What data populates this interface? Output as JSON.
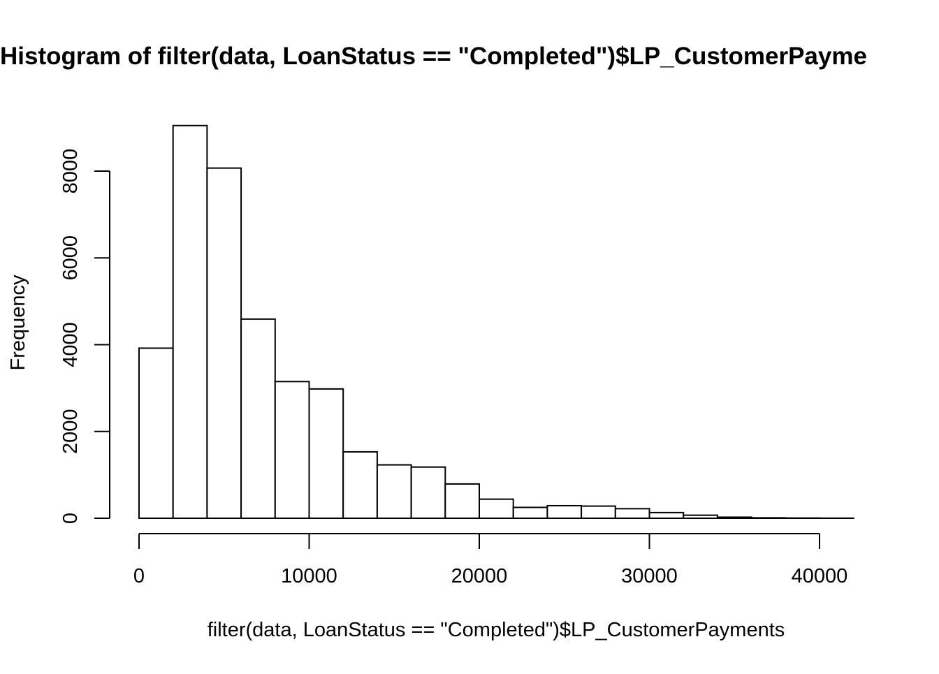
{
  "chart_data": {
    "type": "bar",
    "subtype": "histogram",
    "title": "Histogram of filter(data, LoanStatus == \"Completed\")$LP_CustomerPayme",
    "xlabel": "filter(data, LoanStatus == \"Completed\")$LP_CustomerPayments",
    "ylabel": "Frequency",
    "bins": [
      {
        "start": 0,
        "end": 2000,
        "value": 3920
      },
      {
        "start": 2000,
        "end": 4000,
        "value": 9050
      },
      {
        "start": 4000,
        "end": 6000,
        "value": 8070
      },
      {
        "start": 6000,
        "end": 8000,
        "value": 4590
      },
      {
        "start": 8000,
        "end": 10000,
        "value": 3150
      },
      {
        "start": 10000,
        "end": 12000,
        "value": 2980
      },
      {
        "start": 12000,
        "end": 14000,
        "value": 1530
      },
      {
        "start": 14000,
        "end": 16000,
        "value": 1230
      },
      {
        "start": 16000,
        "end": 18000,
        "value": 1180
      },
      {
        "start": 18000,
        "end": 20000,
        "value": 790
      },
      {
        "start": 20000,
        "end": 22000,
        "value": 440
      },
      {
        "start": 22000,
        "end": 24000,
        "value": 250
      },
      {
        "start": 24000,
        "end": 26000,
        "value": 290
      },
      {
        "start": 26000,
        "end": 28000,
        "value": 280
      },
      {
        "start": 28000,
        "end": 30000,
        "value": 220
      },
      {
        "start": 30000,
        "end": 32000,
        "value": 130
      },
      {
        "start": 32000,
        "end": 34000,
        "value": 70
      },
      {
        "start": 34000,
        "end": 36000,
        "value": 25
      },
      {
        "start": 36000,
        "end": 38000,
        "value": 10
      },
      {
        "start": 38000,
        "end": 40000,
        "value": 5
      },
      {
        "start": 40000,
        "end": 42000,
        "value": 2
      }
    ],
    "xticks": [
      {
        "value": 0,
        "label": "0"
      },
      {
        "value": 10000,
        "label": "10000"
      },
      {
        "value": 20000,
        "label": "20000"
      },
      {
        "value": 30000,
        "label": "30000"
      },
      {
        "value": 40000,
        "label": "40000"
      }
    ],
    "yticks": [
      {
        "value": 0,
        "label": "0"
      },
      {
        "value": 2000,
        "label": "2000"
      },
      {
        "value": 4000,
        "label": "4000"
      },
      {
        "value": 6000,
        "label": "6000"
      },
      {
        "value": 8000,
        "label": "8000"
      }
    ],
    "xlim": [
      0,
      42000
    ],
    "ylim": [
      0,
      9050
    ],
    "grid": false,
    "colors": {
      "bar_fill": "#ffffff",
      "bar_stroke": "#000000",
      "axis": "#000000",
      "background": "#ffffff"
    }
  }
}
